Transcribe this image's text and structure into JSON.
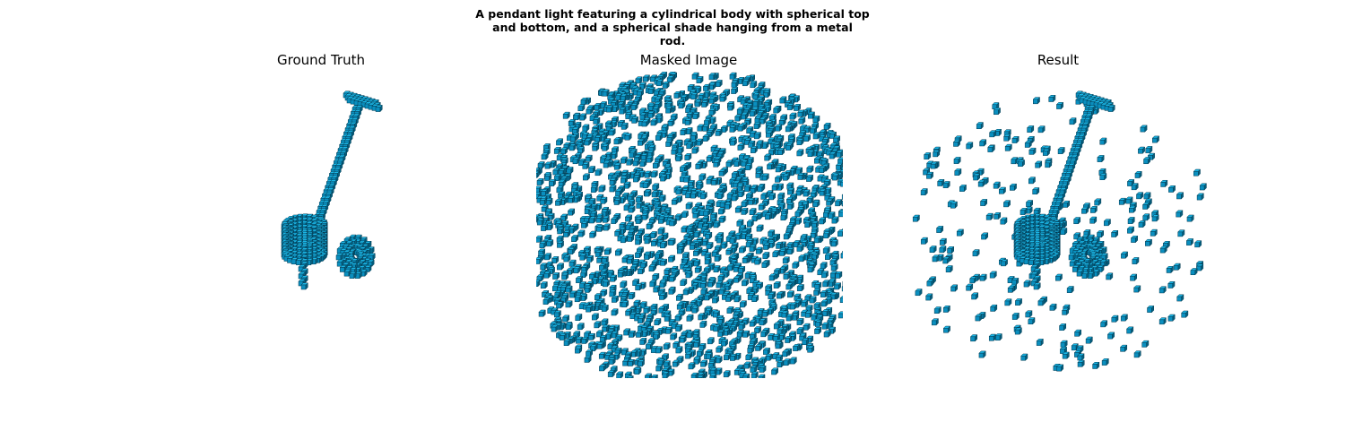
{
  "figure": {
    "caption_lines": [
      "A pendant light featuring a cylindrical body with spherical top",
      "and bottom, and a spherical shade hanging from a metal",
      "rod."
    ]
  },
  "panels": [
    {
      "title": "Ground Truth"
    },
    {
      "title": "Masked Image"
    },
    {
      "title": "Result"
    }
  ],
  "colors": {
    "voxel_top": "#1bb6e6",
    "voxel_front": "#0a8fbf",
    "voxel_side": "#06607f",
    "voxel_edge": "#033b52"
  }
}
